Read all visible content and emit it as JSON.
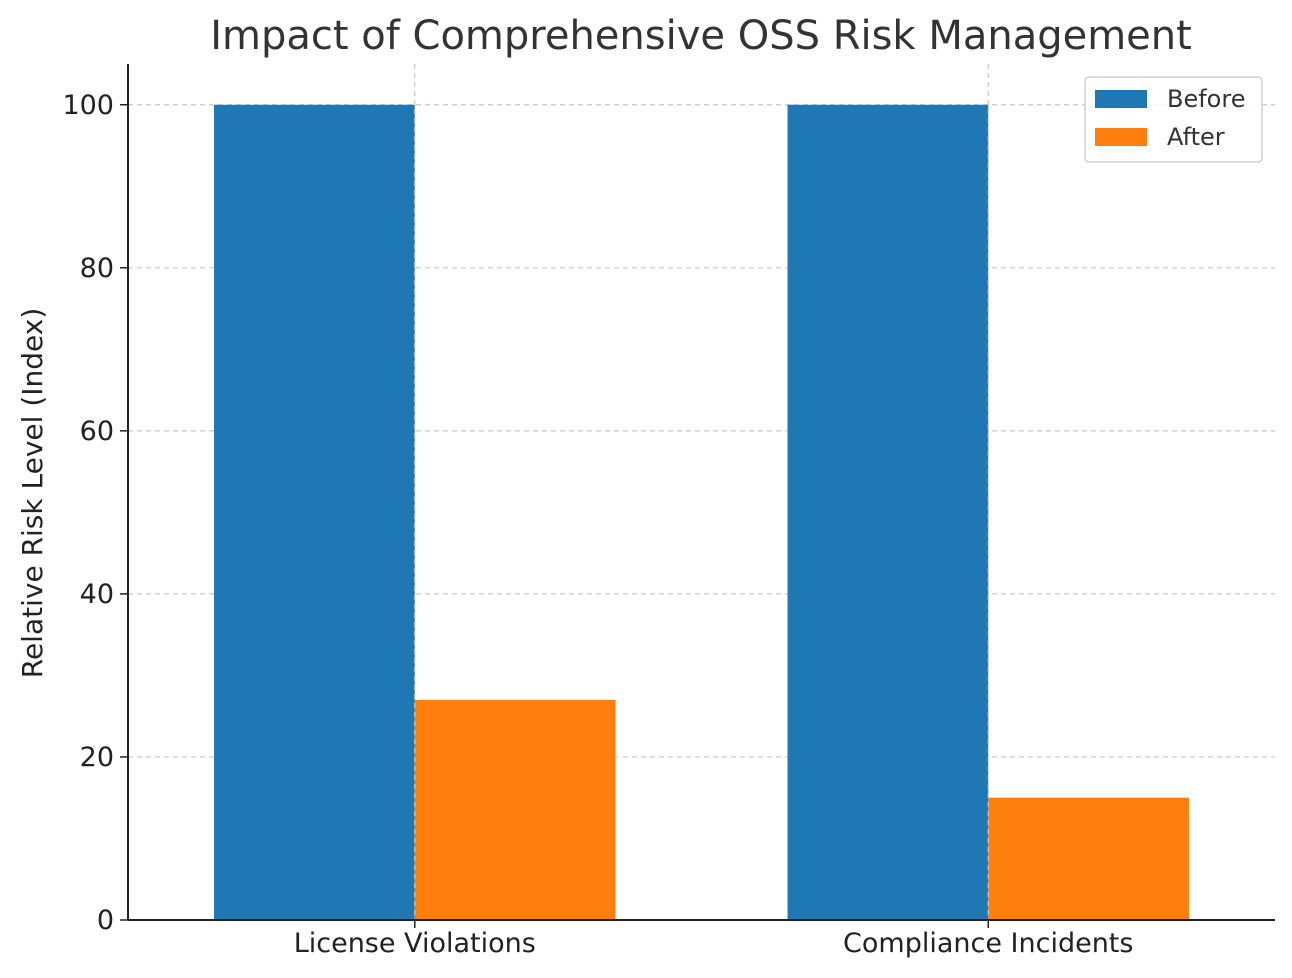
{
  "chart_data": {
    "type": "bar",
    "title": "Impact of Comprehensive OSS Risk Management",
    "xlabel": "",
    "ylabel": "Relative Risk Level (Index)",
    "categories": [
      "License Violations",
      "Compliance Incidents"
    ],
    "series": [
      {
        "name": "Before",
        "values": [
          100,
          100
        ],
        "color": "#1f77b4"
      },
      {
        "name": "After",
        "values": [
          27,
          15
        ],
        "color": "#ff7f0e"
      }
    ],
    "ylim": [
      0,
      105
    ],
    "yticks": [
      0,
      20,
      40,
      60,
      80,
      100
    ],
    "grid": true,
    "legend_position": "top-right"
  }
}
